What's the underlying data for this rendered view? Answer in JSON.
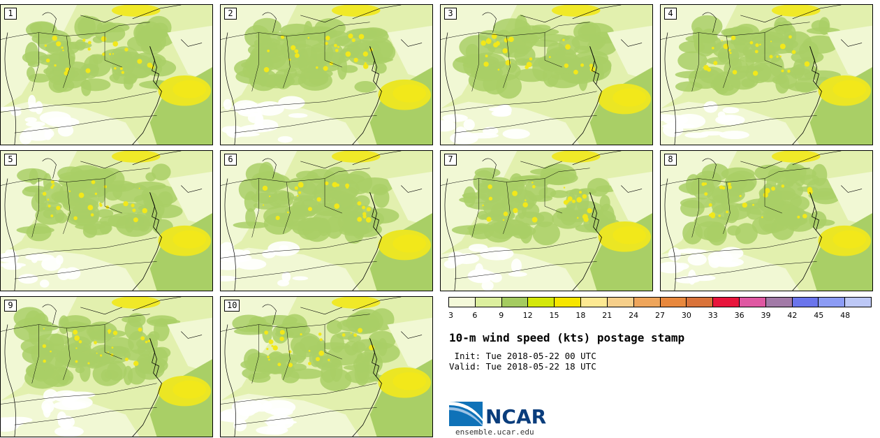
{
  "panels": [
    {
      "label": "1"
    },
    {
      "label": "2"
    },
    {
      "label": "3"
    },
    {
      "label": "4"
    },
    {
      "label": "5"
    },
    {
      "label": "6"
    },
    {
      "label": "7"
    },
    {
      "label": "8"
    },
    {
      "label": "9"
    },
    {
      "label": "10"
    }
  ],
  "colorbar": {
    "levels": [
      "3",
      "6",
      "9",
      "12",
      "15",
      "18",
      "21",
      "24",
      "27",
      "30",
      "33",
      "36",
      "39",
      "42",
      "45",
      "48"
    ],
    "colors": [
      "#f4f9d9",
      "#dcef9e",
      "#a4cb60",
      "#d4e80a",
      "#f7e600",
      "#fde992",
      "#f6cf8a",
      "#eea55b",
      "#e8883d",
      "#d9733a",
      "#e8153c",
      "#df58a2",
      "#a27aa7",
      "#6b75ec",
      "#8c9cf5",
      "#bdc8f6"
    ]
  },
  "title": "10-m wind speed (kts) postage stamp",
  "init": " Init: Tue 2018-05-22 00 UTC",
  "valid": "Valid: Tue 2018-05-22 18 UTC",
  "logo": {
    "name": "NCAR",
    "url": "ensemble.ucar.edu"
  },
  "map_colors": {
    "light": "#f1f8d4",
    "base": "#e2f0ae",
    "mid": "#a9cf66",
    "bright": "#f2e81a",
    "white": "#ffffff"
  }
}
